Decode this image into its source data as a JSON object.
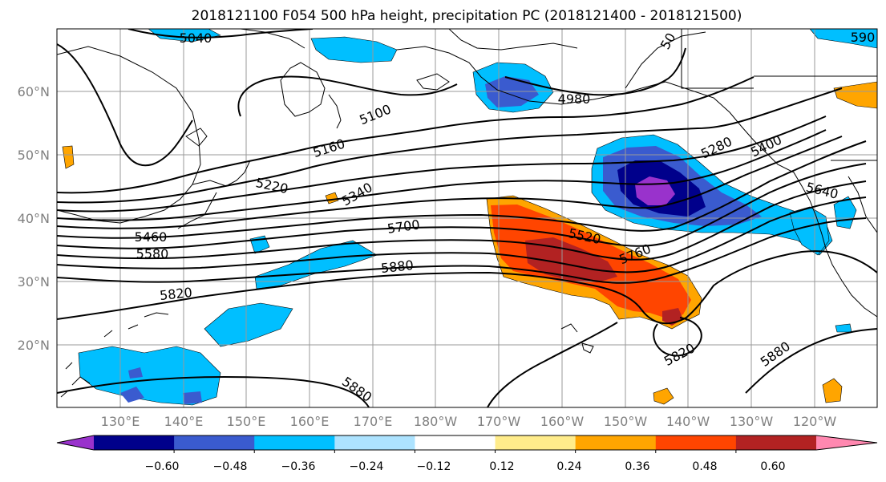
{
  "title": "2018121100 F054 500 hPa height, precipitation PC (2018121400 - 2018121500)",
  "lat_ticks": [
    "60°N",
    "50°N",
    "40°N",
    "30°N",
    "20°N"
  ],
  "lon_ticks": [
    "130°E",
    "140°E",
    "150°E",
    "160°E",
    "170°E",
    "180°W",
    "170°W",
    "160°W",
    "150°W",
    "140°W",
    "130°W",
    "120°W"
  ],
  "contour_labels": [
    "5040",
    "5100",
    "4980",
    "50",
    "5160",
    "5220",
    "5340",
    "5460",
    "5580",
    "5700",
    "5820",
    "5880",
    "5520",
    "5760",
    "5280",
    "5400",
    "5640",
    "5820",
    "5880",
    "5880",
    "590"
  ],
  "colorbar": {
    "ticks": [
      "−0.60",
      "−0.48",
      "−0.36",
      "−0.24",
      "−0.12",
      "0.12",
      "0.24",
      "0.36",
      "0.48",
      "0.60"
    ],
    "colors": [
      "#9932CC",
      "#00008B",
      "#3A5BCF",
      "#00BFFF",
      "#ADE3FF",
      "#FFFFFF",
      "#FFEC8B",
      "#FFA500",
      "#FF4500",
      "#B22222",
      "#FF88B0"
    ]
  }
}
